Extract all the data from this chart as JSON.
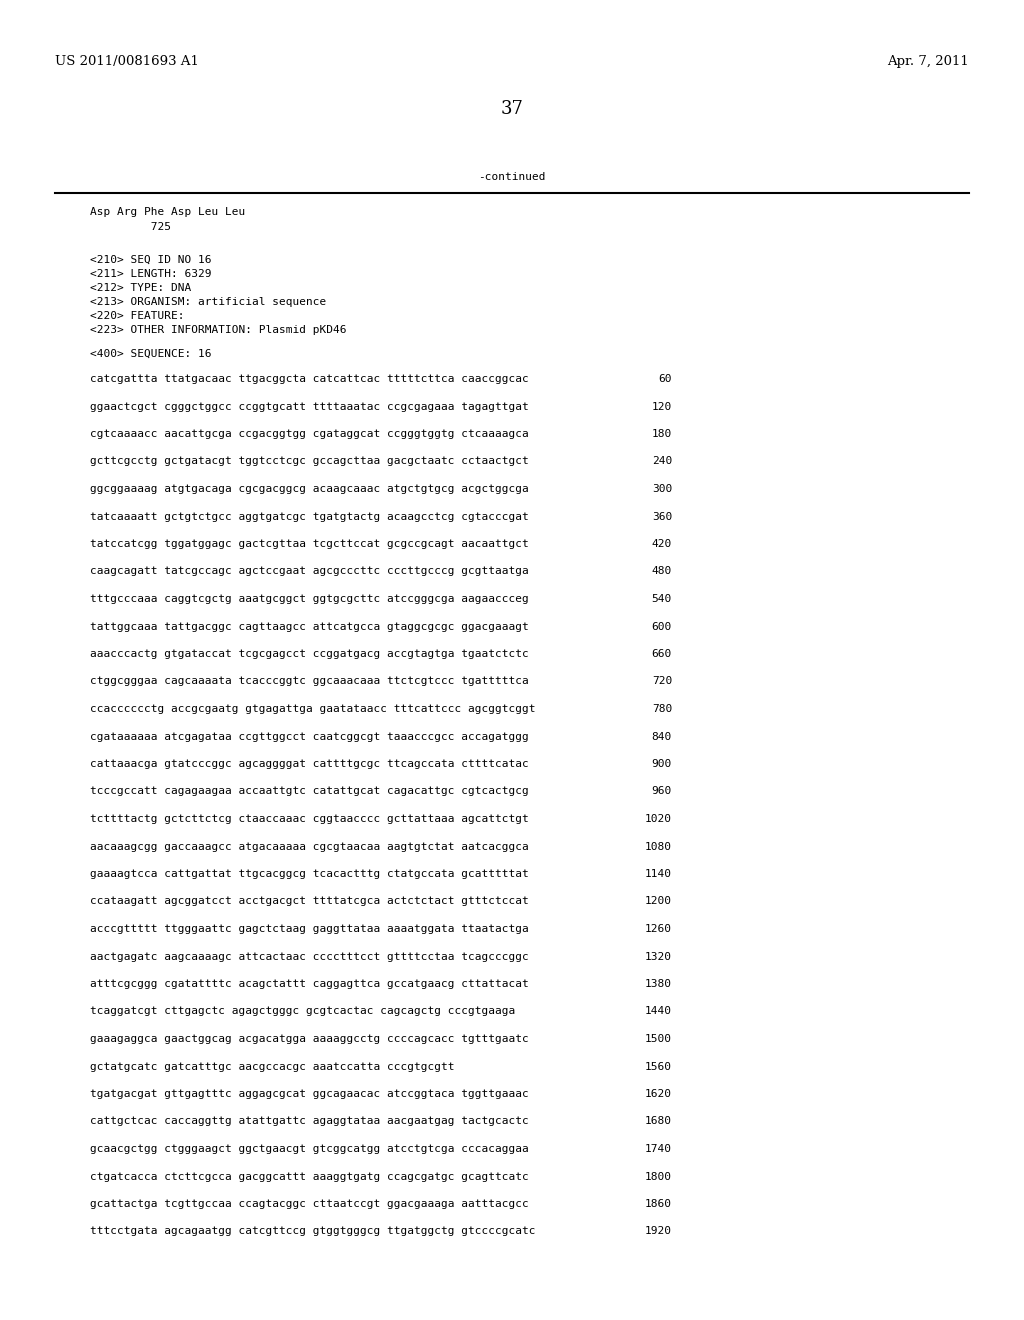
{
  "header_left": "US 2011/0081693 A1",
  "header_right": "Apr. 7, 2011",
  "page_number": "37",
  "continued_label": "-continued",
  "background_color": "#ffffff",
  "text_color": "#000000",
  "header_fontsize": 9.5,
  "body_fontsize": 8.0,
  "mono_fontsize": 8.0,
  "continuation_text": [
    "Asp Arg Phe Asp Leu Leu",
    "         725"
  ],
  "metadata": [
    "<210> SEQ ID NO 16",
    "<211> LENGTH: 6329",
    "<212> TYPE: DNA",
    "<213> ORGANISM: artificial sequence",
    "<220> FEATURE:",
    "<223> OTHER INFORMATION: Plasmid pKD46",
    "",
    "<400> SEQUENCE: 16"
  ],
  "sequence_lines": [
    [
      "catcgattta ttatgacaac ttgacggcta catcattcac tttttcttca caaccggcac",
      "60"
    ],
    [
      "ggaactcgct cgggctggcc ccggtgcatt ttttaaatac ccgcgagaaa tagagttgat",
      "120"
    ],
    [
      "cgtcaaaacc aacattgcga ccgacggtgg cgataggcat ccgggtggtg ctcaaaagca",
      "180"
    ],
    [
      "gcttcgcctg gctgatacgt tggtcctcgc gccagcttaa gacgctaatc cctaactgct",
      "240"
    ],
    [
      "ggcggaaaag atgtgacaga cgcgacggcg acaagcaaac atgctgtgcg acgctggcga",
      "300"
    ],
    [
      "tatcaaaatt gctgtctgcc aggtgatcgc tgatgtactg acaagcctcg cgtacccgat",
      "360"
    ],
    [
      "tatccatcgg tggatggagc gactcgttaa tcgcttccat gcgccgcagt aacaattgct",
      "420"
    ],
    [
      "caagcagatt tatcgccagc agctccgaat agcgcccttc cccttgcccg gcgttaatga",
      "480"
    ],
    [
      "tttgcccaaa caggtcgctg aaatgcggct ggtgcgcttc atccgggcga aagaaccceg",
      "540"
    ],
    [
      "tattggcaaa tattgacggc cagttaagcc attcatgcca gtaggcgcgc ggacgaaagt",
      "600"
    ],
    [
      "aaacccactg gtgataccat tcgcgagcct ccggatgacg accgtagtga tgaatctctc",
      "660"
    ],
    [
      "ctggcgggaa cagcaaaata tcacccggtc ggcaaacaaa ttctcgtccc tgatttttca",
      "720"
    ],
    [
      "ccacccccctg accgcgaatg gtgagattga gaatataacc tttcattccc agcggtcggt",
      "780"
    ],
    [
      "cgataaaaaa atcgagataa ccgttggcct caatcggcgt taaacccgcc accagatggg",
      "840"
    ],
    [
      "cattaaacga gtatcccggc agcaggggat cattttgcgc ttcagccata cttttcatac",
      "900"
    ],
    [
      "tcccgccatt cagagaagaa accaattgtc catattgcat cagacattgc cgtcactgcg",
      "960"
    ],
    [
      "tcttttactg gctcttctcg ctaaccaaac cggtaacccc gcttattaaa agcattctgt",
      "1020"
    ],
    [
      "aacaaagcgg gaccaaagcc atgacaaaaa cgcgtaacaa aagtgtctat aatcacggca",
      "1080"
    ],
    [
      "gaaaagtcca cattgattat ttgcacggcg tcacactttg ctatgccata gcatttttat",
      "1140"
    ],
    [
      "ccataagatt agcggatcct acctgacgct ttttatcgca actctctact gtttctccat",
      "1200"
    ],
    [
      "acccgttttt ttgggaattc gagctctaag gaggttataa aaaatggata ttaatactga",
      "1260"
    ],
    [
      "aactgagatc aagcaaaagc attcactaac cccctttcct gttttcctaa tcagcccggc",
      "1320"
    ],
    [
      "atttcgcggg cgatattttc acagctattt caggagttca gccatgaacg cttattacat",
      "1380"
    ],
    [
      "tcaggatcgt cttgagctc agagctgggc gcgtcactac cagcagctg cccgtgaaga",
      "1440"
    ],
    [
      "gaaagaggca gaactggcag acgacatgga aaaaggcctg ccccagcacc tgtttgaatc",
      "1500"
    ],
    [
      "gctatgcatc gatcatttgc aacgccacgc aaatccatta cccgtgcgtt",
      "1560"
    ],
    [
      "tgatgacgat gttgagtttc aggagcgcat ggcagaacac atccggtaca tggttgaaac",
      "1620"
    ],
    [
      "cattgctcac caccaggttg atattgattc agaggtataa aacgaatgag tactgcactc",
      "1680"
    ],
    [
      "gcaacgctgg ctgggaagct ggctgaacgt gtcggcatgg atcctgtcga cccacaggaa",
      "1740"
    ],
    [
      "ctgatcacca ctcttcgcca gacggcattt aaaggtgatg ccagcgatgc gcagttcatc",
      "1800"
    ],
    [
      "gcattactga tcgttgccaa ccagtacggc cttaatccgt ggacgaaaga aatttacgcc",
      "1860"
    ],
    [
      "tttcctgata agcagaatgg catcgttccg gtggtgggcg ttgatggctg gtccccgcatc",
      "1920"
    ]
  ]
}
